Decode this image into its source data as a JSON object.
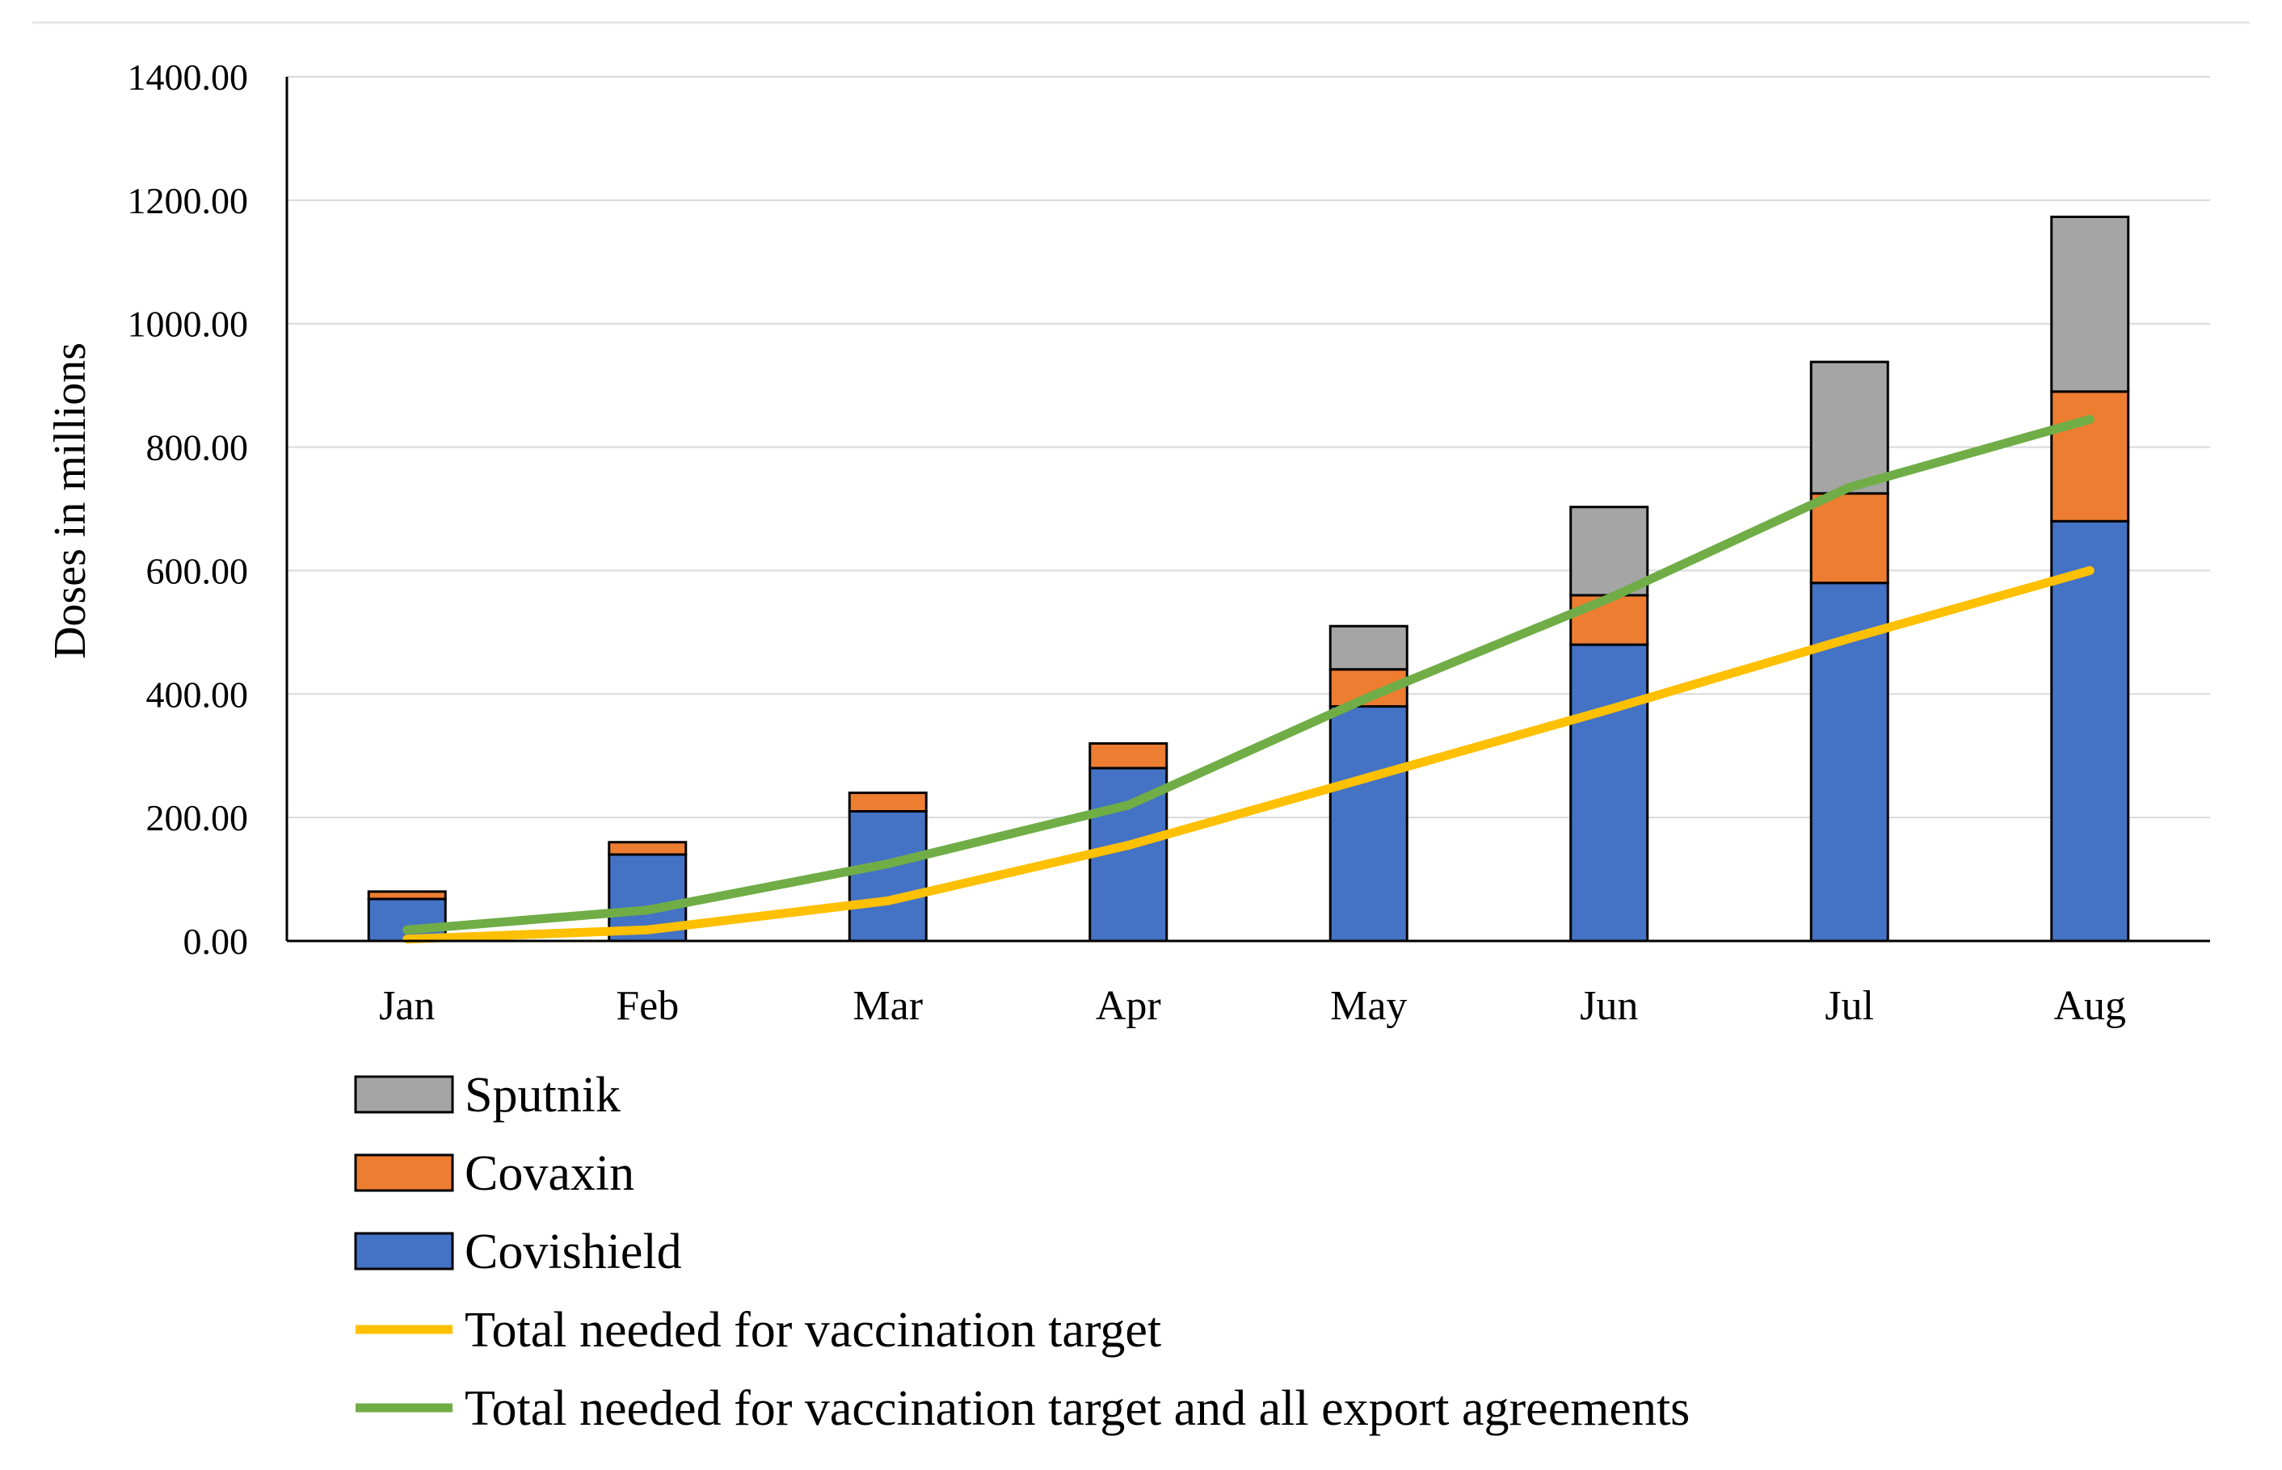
{
  "chart_data": {
    "type": "bar",
    "stacked": true,
    "title": "",
    "xlabel": "",
    "ylabel": "Doses in millions",
    "ylim": [
      0,
      1400
    ],
    "yticks": [
      "0.00",
      "200.00",
      "400.00",
      "600.00",
      "800.00",
      "1000.00",
      "1200.00",
      "1400.00"
    ],
    "grid": true,
    "legend_position": "bottom-left",
    "categories": [
      "Jan",
      "Feb",
      "Mar",
      "Apr",
      "May",
      "Jun",
      "Jul",
      "Aug"
    ],
    "series": [
      {
        "name": "Covishield",
        "kind": "bar",
        "color": "#4472C4",
        "values": [
          68,
          140,
          210,
          280,
          380,
          480,
          580,
          680
        ]
      },
      {
        "name": "Covaxin",
        "kind": "bar",
        "color": "#ED7D31",
        "values": [
          12,
          20,
          30,
          40,
          60,
          80,
          145,
          210
        ]
      },
      {
        "name": "Sputnik",
        "kind": "bar",
        "color": "#A5A5A5",
        "values": [
          0,
          0,
          0,
          0,
          70,
          143,
          213,
          283
        ]
      },
      {
        "name": "Total needed for vaccination target",
        "kind": "line",
        "color": "#FFC000",
        "values": [
          3,
          18,
          65,
          155,
          265,
          375,
          490,
          600
        ]
      },
      {
        "name": "Total needed for vaccination target and all export agreements",
        "kind": "line",
        "color": "#70AD47",
        "values": [
          18,
          50,
          125,
          220,
          395,
          555,
          735,
          845
        ]
      }
    ],
    "legend_order": [
      "Sputnik",
      "Covaxin",
      "Covishield",
      "Total needed for vaccination target",
      "Total needed for vaccination target and all export agreements"
    ]
  }
}
